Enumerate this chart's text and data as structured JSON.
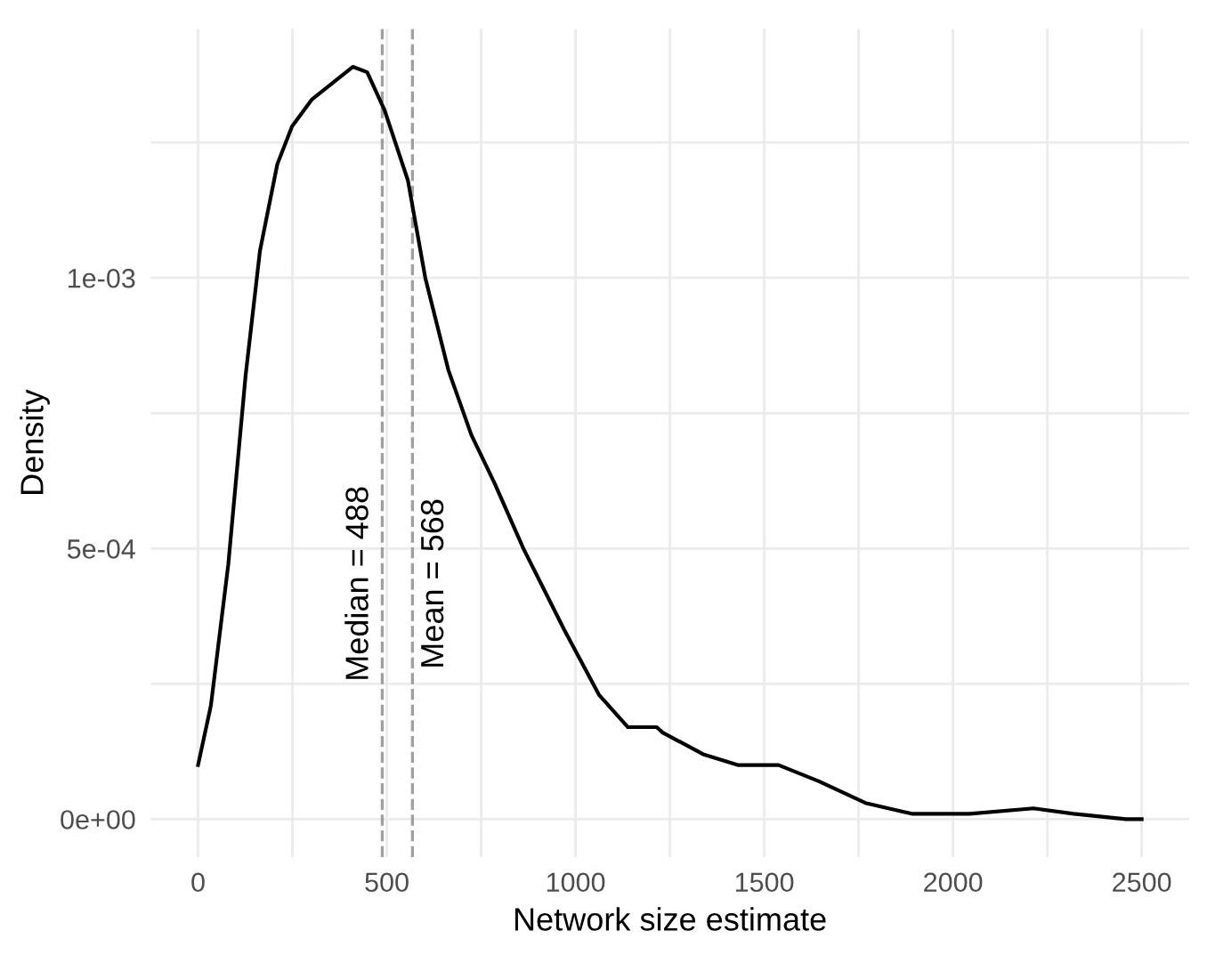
{
  "chart_data": {
    "type": "line",
    "xlabel": "Network size estimate",
    "ylabel": "Density",
    "series": [
      {
        "color": "#000000",
        "x": [
          0,
          34,
          80,
          126,
          164,
          210,
          249,
          302,
          356,
          410,
          448,
          494,
          556,
          602,
          663,
          724,
          786,
          862,
          970,
          1062,
          1139,
          1215,
          1231,
          1338,
          1430,
          1538,
          1645,
          1768,
          1891,
          2044,
          2213,
          2320,
          2458,
          2500
        ],
        "values": [
          0.0001,
          0.00021,
          0.00047,
          0.00082,
          0.00105,
          0.00121,
          0.00128,
          0.00133,
          0.00136,
          0.00139,
          0.00138,
          0.00131,
          0.00118,
          0.001,
          0.00083,
          0.00071,
          0.00062,
          0.0005,
          0.00035,
          0.00023,
          0.00017,
          0.00017,
          0.00016,
          0.00012,
          0.0001,
          0.0001,
          7e-05,
          3e-05,
          1e-05,
          1e-05,
          2e-05,
          1e-05,
          0,
          0
        ]
      }
    ],
    "xlim": [
      -125,
      2625
    ],
    "ylim": [
      -7e-05,
      0.00146
    ],
    "xticks": [
      0,
      {
        "value": 250,
        "label": null
      },
      500,
      {
        "value": 750,
        "label": null
      },
      1000,
      {
        "value": 1250,
        "label": null
      },
      1500,
      {
        "value": 1750,
        "label": null
      },
      2000,
      {
        "value": 2250,
        "label": null
      },
      2500
    ],
    "yticks": [
      {
        "value": 0,
        "label": "0e+00"
      },
      {
        "value": 0.00025,
        "label": null
      },
      {
        "value": 0.0005,
        "label": "5e-04"
      },
      {
        "value": 0.00075,
        "label": null
      },
      {
        "value": 0.001,
        "label": "1e-03"
      },
      {
        "value": 0.00125,
        "label": null
      }
    ],
    "ref_lines": [
      {
        "axis": "x",
        "value": 488,
        "label": "Median = 488",
        "color": "#a0a0a0",
        "line_style": "dashed"
      },
      {
        "axis": "x",
        "value": 568,
        "label": "Mean = 568",
        "color": "#a0a0a0",
        "line_style": "dashed"
      }
    ],
    "grid": true,
    "line_style": "solid",
    "marker": "none",
    "legend": false
  }
}
